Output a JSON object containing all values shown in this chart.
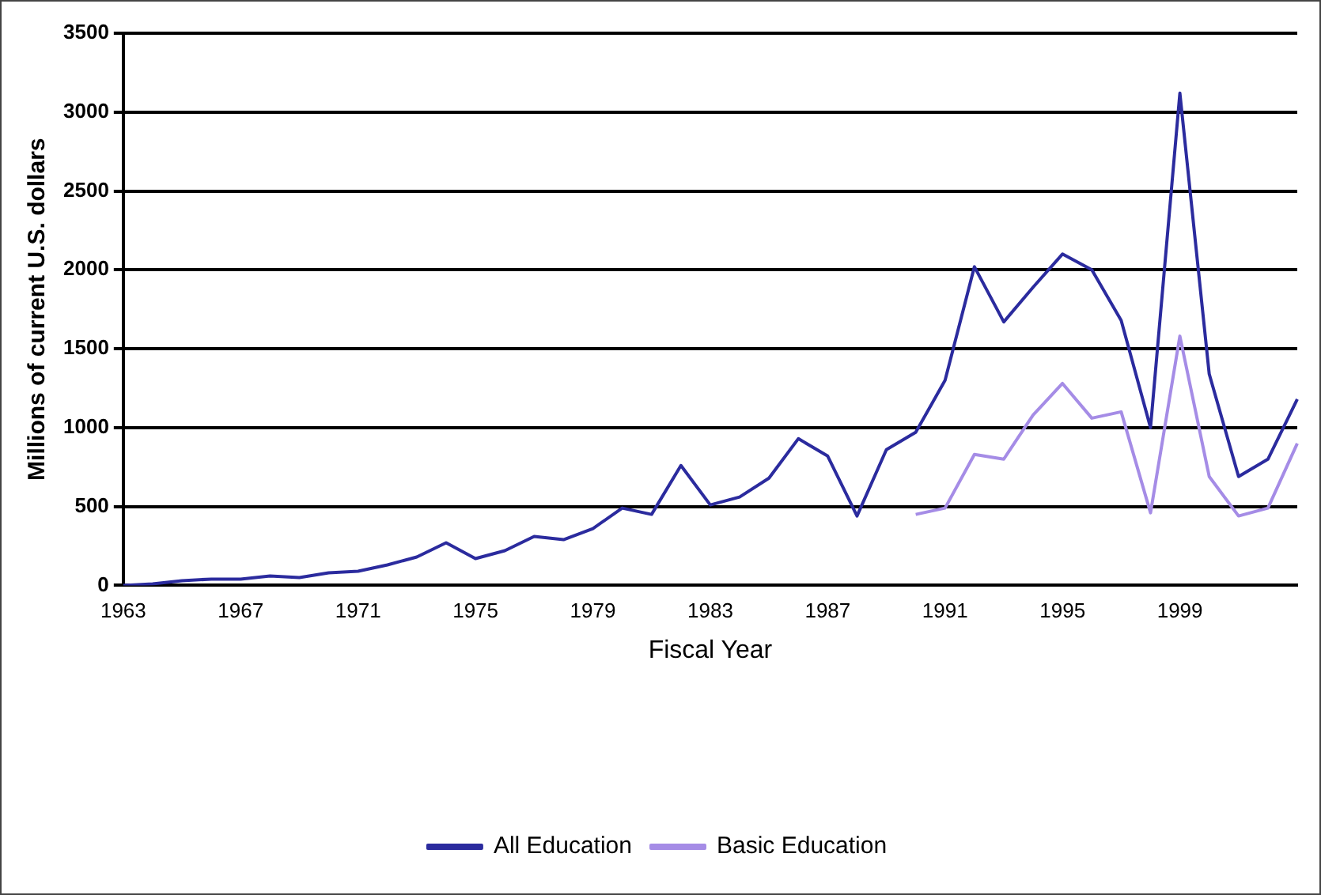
{
  "chart_data": {
    "type": "line",
    "xlabel": "Fiscal Year",
    "ylabel": "Millions of current U.S. dollars",
    "categories": [
      "1963",
      null,
      null,
      null,
      "1967",
      null,
      null,
      null,
      "1971",
      null,
      null,
      null,
      "1975",
      null,
      null,
      null,
      "1979",
      null,
      null,
      null,
      "1983",
      null,
      null,
      null,
      "1987",
      null,
      null,
      null,
      "1991",
      null,
      null,
      null,
      "1995",
      null,
      null,
      null,
      "1999",
      null,
      null,
      null,
      null
    ],
    "series": [
      {
        "name": "All Education",
        "color": "#2b2b9e",
        "values": [
          0,
          10,
          30,
          40,
          40,
          60,
          50,
          80,
          90,
          130,
          180,
          270,
          170,
          220,
          310,
          290,
          360,
          490,
          450,
          760,
          510,
          560,
          680,
          930,
          820,
          440,
          860,
          970,
          1300,
          2020,
          1670,
          1890,
          2100,
          2000,
          1680,
          1000,
          3120,
          1340,
          690,
          800,
          1180
        ]
      },
      {
        "name": "Basic Education",
        "color": "#a58ce6",
        "values": [
          null,
          null,
          null,
          null,
          null,
          null,
          null,
          null,
          null,
          null,
          null,
          null,
          null,
          null,
          null,
          null,
          null,
          null,
          null,
          null,
          null,
          null,
          null,
          null,
          null,
          null,
          null,
          450,
          490,
          830,
          800,
          1080,
          1280,
          1060,
          1100,
          460,
          1580,
          690,
          440,
          490,
          900
        ]
      }
    ],
    "ylim": [
      0,
      3500
    ],
    "yticks": [
      0,
      500,
      1000,
      1500,
      2000,
      2500,
      3000,
      3500
    ],
    "grid": "y",
    "legend": "bottom",
    "marker": "none",
    "line_style": "solid"
  }
}
